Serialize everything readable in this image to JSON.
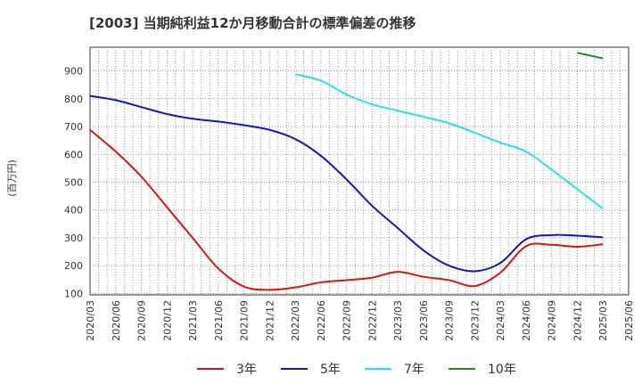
{
  "chart_data": {
    "type": "line",
    "title": "[2003]  当期純利益12か月移動合計の標準偏差の推移",
    "ylabel": "(百万円)",
    "xlabel": "",
    "ylim": [
      95,
      985
    ],
    "yticks": [
      100,
      200,
      300,
      400,
      500,
      600,
      700,
      800,
      900
    ],
    "xticks": [
      "2020/03",
      "2020/06",
      "2020/09",
      "2020/12",
      "2021/03",
      "2021/06",
      "2021/09",
      "2021/12",
      "2022/03",
      "2022/06",
      "2022/09",
      "2022/12",
      "2023/03",
      "2023/06",
      "2023/09",
      "2023/12",
      "2024/03",
      "2024/06",
      "2024/09",
      "2024/12",
      "2025/03",
      "2025/06"
    ],
    "grid": true,
    "legend_position": "bottom",
    "series": [
      {
        "name": "3年",
        "color": "#dd1111",
        "x": [
          "2020/03",
          "2020/06",
          "2020/09",
          "2020/12",
          "2021/03",
          "2021/06",
          "2021/09",
          "2021/12",
          "2022/03",
          "2022/06",
          "2022/09",
          "2022/12",
          "2023/03",
          "2023/06",
          "2023/09",
          "2023/12",
          "2024/03",
          "2024/06",
          "2024/09",
          "2024/12",
          "2025/03"
        ],
        "values": [
          688,
          610,
          520,
          410,
          300,
          190,
          125,
          113,
          122,
          140,
          148,
          157,
          178,
          160,
          148,
          127,
          175,
          270,
          275,
          268,
          277
        ]
      },
      {
        "name": "5年",
        "color": "#1414c8",
        "x": [
          "2020/03",
          "2020/06",
          "2020/09",
          "2020/12",
          "2021/03",
          "2021/06",
          "2021/09",
          "2021/12",
          "2022/03",
          "2022/06",
          "2022/09",
          "2022/12",
          "2023/03",
          "2023/06",
          "2023/09",
          "2023/12",
          "2024/03",
          "2024/06",
          "2024/09",
          "2024/12",
          "2025/03"
        ],
        "values": [
          810,
          795,
          770,
          745,
          728,
          718,
          705,
          688,
          655,
          595,
          510,
          415,
          335,
          255,
          200,
          180,
          210,
          295,
          310,
          308,
          302
        ]
      },
      {
        "name": "7年",
        "color": "#22e6e6",
        "x": [
          "2022/03",
          "2022/06",
          "2022/09",
          "2022/12",
          "2023/03",
          "2023/06",
          "2023/09",
          "2023/12",
          "2024/03",
          "2024/06",
          "2024/09",
          "2024/12",
          "2025/03"
        ],
        "values": [
          888,
          865,
          815,
          780,
          757,
          735,
          712,
          678,
          642,
          610,
          545,
          475,
          405
        ]
      },
      {
        "name": "10年",
        "color": "#2a8a2a",
        "x": [
          "2024/12",
          "2025/03"
        ],
        "values": [
          965,
          945
        ]
      }
    ]
  }
}
